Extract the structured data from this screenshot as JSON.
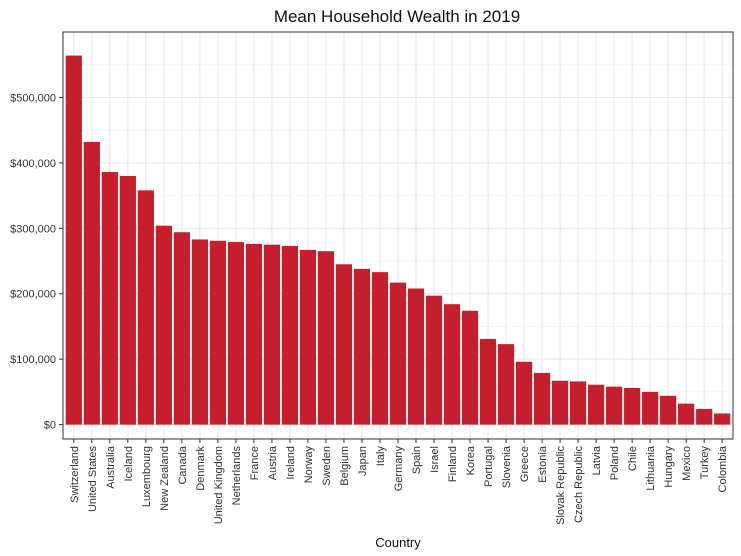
{
  "chart_data": {
    "type": "bar",
    "title": "Mean Household Wealth in 2019",
    "xlabel": "Country",
    "ylabel": "",
    "ylim": [
      -22000,
      600000
    ],
    "yticks": [
      0,
      100000,
      200000,
      300000,
      400000,
      500000
    ],
    "ytick_labels": [
      "$0",
      "$100,000",
      "$200,000",
      "$300,000",
      "$400,000",
      "$500,000"
    ],
    "grid": true,
    "bar_color": "#c51f2d",
    "categories": [
      "Switzerland",
      "United States",
      "Australia",
      "Iceland",
      "Luxembourg",
      "New Zealand",
      "Canada",
      "Denmark",
      "United Kingdom",
      "Netherlands",
      "France",
      "Austria",
      "Ireland",
      "Norway",
      "Sweden",
      "Belgium",
      "Japan",
      "Italy",
      "Germany",
      "Spain",
      "Israel",
      "Finland",
      "Korea",
      "Portugal",
      "Slovenia",
      "Greece",
      "Estonia",
      "Slovak Republic",
      "Czech Republic",
      "Latvia",
      "Poland",
      "Chile",
      "Lithuania",
      "Hungary",
      "Mexico",
      "Turkey",
      "Colombia"
    ],
    "values": [
      564000,
      432000,
      386000,
      380000,
      358000,
      304000,
      294000,
      283000,
      281000,
      279000,
      276000,
      275000,
      273000,
      267000,
      265000,
      245000,
      238000,
      233000,
      217000,
      208000,
      197000,
      184000,
      174000,
      131000,
      123000,
      96000,
      79000,
      67000,
      66000,
      61000,
      58000,
      56000,
      50000,
      44000,
      32000,
      24000,
      17000
    ]
  }
}
